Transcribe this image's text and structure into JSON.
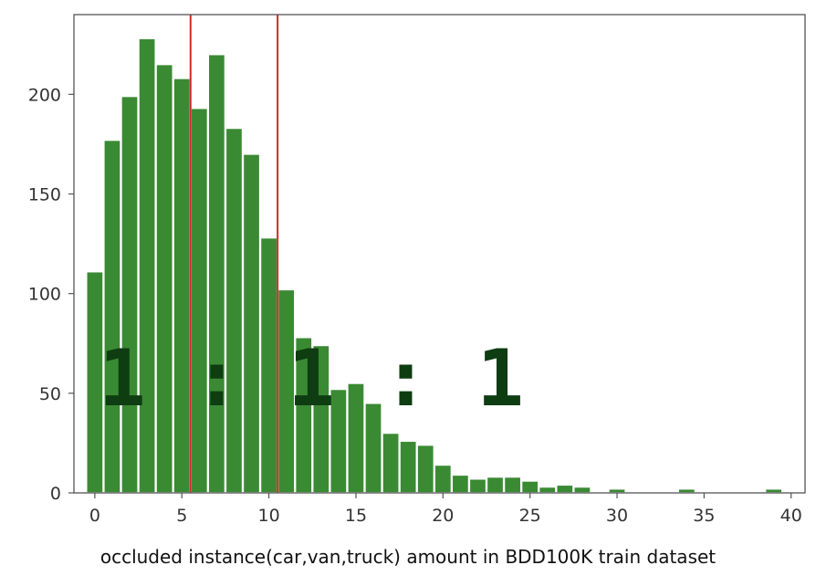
{
  "caption": "occluded instance(car,van,truck) amount in BDD100K train dataset",
  "annotation": "1 : 1 : 1",
  "chart_data": {
    "type": "bar",
    "x": [
      0,
      1,
      2,
      3,
      4,
      5,
      6,
      7,
      8,
      9,
      10,
      11,
      12,
      13,
      14,
      15,
      16,
      17,
      18,
      19,
      20,
      21,
      22,
      23,
      24,
      25,
      26,
      27,
      28,
      29,
      30,
      31,
      32,
      33,
      34,
      35,
      36,
      37,
      38,
      39
    ],
    "values": [
      111,
      177,
      199,
      228,
      215,
      208,
      193,
      220,
      183,
      170,
      128,
      102,
      78,
      74,
      52,
      55,
      45,
      30,
      26,
      24,
      14,
      9,
      7,
      8,
      8,
      6,
      3,
      4,
      3,
      0,
      2,
      0,
      0,
      0,
      2,
      0,
      0,
      0,
      0,
      2
    ],
    "xlim": [
      -1.2,
      40.8
    ],
    "ylim": [
      0,
      240
    ],
    "xticks": [
      0,
      5,
      10,
      15,
      20,
      25,
      30,
      35,
      40
    ],
    "yticks": [
      0,
      50,
      100,
      150,
      200
    ],
    "vlines": [
      5.5,
      10.5
    ],
    "title": "",
    "xlabel": "occluded instance(car,van,truck) amount in BDD100K train dataset",
    "ylabel": "",
    "grid": false,
    "colors": {
      "bar": "#3a8a33",
      "bar_edge": "#ffffff",
      "vline": "#cc2a2a",
      "axes": "#555555"
    }
  }
}
